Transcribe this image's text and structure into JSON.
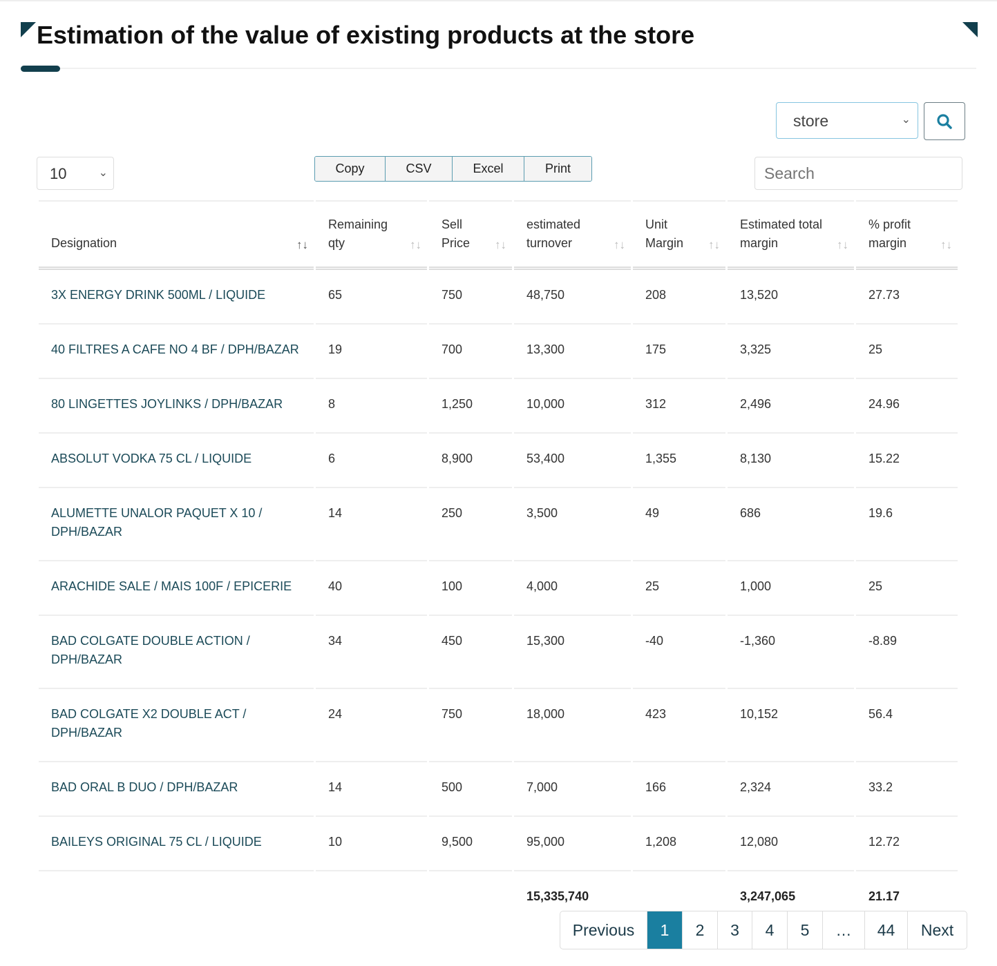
{
  "title": "Estimation of the value of existing products at the store",
  "store_select": {
    "value": "store"
  },
  "page_length": {
    "value": "10"
  },
  "export_buttons": [
    "Copy",
    "CSV",
    "Excel",
    "Print"
  ],
  "search": {
    "placeholder": "Search"
  },
  "columns": [
    {
      "l1": "",
      "l2": "Designation",
      "sorted": true
    },
    {
      "l1": "Remaining",
      "l2": "qty",
      "sorted": false
    },
    {
      "l1": "Sell",
      "l2": "Price",
      "sorted": false
    },
    {
      "l1": "estimated",
      "l2": "turnover",
      "sorted": false
    },
    {
      "l1": "Unit",
      "l2": "Margin",
      "sorted": false
    },
    {
      "l1": "Estimated total",
      "l2": "margin",
      "sorted": false
    },
    {
      "l1": "% profit",
      "l2": "margin",
      "sorted": false
    }
  ],
  "rows": [
    [
      "3X ENERGY DRINK 500ML / LIQUIDE",
      "65",
      "750",
      "48,750",
      "208",
      "13,520",
      "27.73"
    ],
    [
      "40 FILTRES A CAFE NO 4 BF / DPH/BAZAR",
      "19",
      "700",
      "13,300",
      "175",
      "3,325",
      "25"
    ],
    [
      "80 LINGETTES JOYLINKS / DPH/BAZAR",
      "8",
      "1,250",
      "10,000",
      "312",
      "2,496",
      "24.96"
    ],
    [
      "ABSOLUT VODKA 75 CL / LIQUIDE",
      "6",
      "8,900",
      "53,400",
      "1,355",
      "8,130",
      "15.22"
    ],
    [
      "ALUMETTE UNALOR PAQUET X 10 / DPH/BAZAR",
      "14",
      "250",
      "3,500",
      "49",
      "686",
      "19.6"
    ],
    [
      "ARACHIDE SALE / MAIS 100F / EPICERIE",
      "40",
      "100",
      "4,000",
      "25",
      "1,000",
      "25"
    ],
    [
      "BAD COLGATE DOUBLE ACTION / DPH/BAZAR",
      "34",
      "450",
      "15,300",
      "-40",
      "-1,360",
      "-8.89"
    ],
    [
      "BAD COLGATE X2 DOUBLE ACT / DPH/BAZAR",
      "24",
      "750",
      "18,000",
      "423",
      "10,152",
      "56.4"
    ],
    [
      "BAD ORAL B DUO / DPH/BAZAR",
      "14",
      "500",
      "7,000",
      "166",
      "2,324",
      "33.2"
    ],
    [
      "BAILEYS ORIGINAL 75 CL / LIQUIDE",
      "10",
      "9,500",
      "95,000",
      "1,208",
      "12,080",
      "12.72"
    ]
  ],
  "totals": [
    "",
    "",
    "",
    "15,335,740",
    "",
    "3,247,065",
    "21.17"
  ],
  "pagination": {
    "items": [
      "Previous",
      "1",
      "2",
      "3",
      "4",
      "5",
      "…",
      "44",
      "Next"
    ],
    "active": "1"
  },
  "colors": {
    "accent": "#123f4d",
    "active_page": "#1a7fa0"
  }
}
